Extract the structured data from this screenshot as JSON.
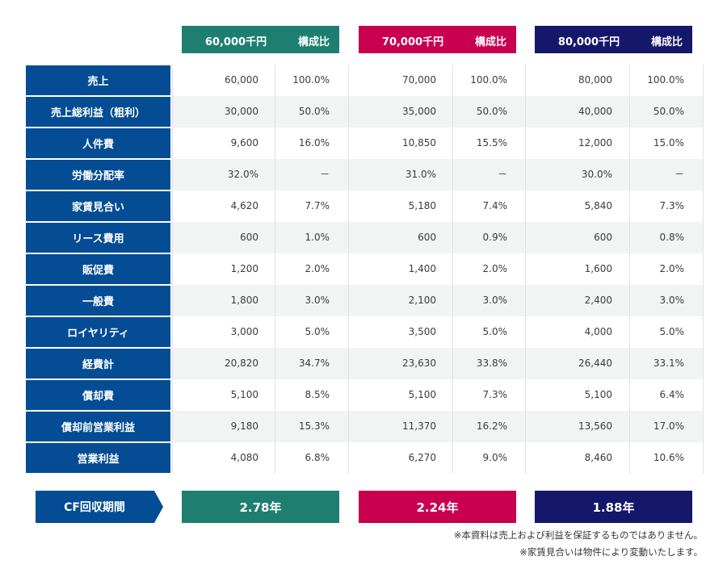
{
  "colors": {
    "label_bg": "#044d94",
    "plan_a": "#1e7f71",
    "plan_b": "#c8004f",
    "plan_c": "#15176a",
    "alt_row": "#f2f3f3"
  },
  "plans": [
    {
      "amount": "60,000千円",
      "ratio_label": "構成比",
      "cf": "2.78年"
    },
    {
      "amount": "70,000千円",
      "ratio_label": "構成比",
      "cf": "2.24年"
    },
    {
      "amount": "80,000千円",
      "ratio_label": "構成比",
      "cf": "1.88年"
    }
  ],
  "rows": [
    {
      "label": "売上",
      "values": [
        [
          "60,000",
          "100.0%"
        ],
        [
          "70,000",
          "100.0%"
        ],
        [
          "80,000",
          "100.0%"
        ]
      ]
    },
    {
      "label": "売上総利益（粗利）",
      "values": [
        [
          "30,000",
          "50.0%"
        ],
        [
          "35,000",
          "50.0%"
        ],
        [
          "40,000",
          "50.0%"
        ]
      ]
    },
    {
      "label": "人件費",
      "values": [
        [
          "9,600",
          "16.0%"
        ],
        [
          "10,850",
          "15.5%"
        ],
        [
          "12,000",
          "15.0%"
        ]
      ]
    },
    {
      "label": "労働分配率",
      "values": [
        [
          "32.0%",
          "－"
        ],
        [
          "31.0%",
          "－"
        ],
        [
          "30.0%",
          "－"
        ]
      ]
    },
    {
      "label": "家賃見合い",
      "values": [
        [
          "4,620",
          "7.7%"
        ],
        [
          "5,180",
          "7.4%"
        ],
        [
          "5,840",
          "7.3%"
        ]
      ]
    },
    {
      "label": "リース費用",
      "values": [
        [
          "600",
          "1.0%"
        ],
        [
          "600",
          "0.9%"
        ],
        [
          "600",
          "0.8%"
        ]
      ]
    },
    {
      "label": "販促費",
      "values": [
        [
          "1,200",
          "2.0%"
        ],
        [
          "1,400",
          "2.0%"
        ],
        [
          "1,600",
          "2.0%"
        ]
      ]
    },
    {
      "label": "一般費",
      "values": [
        [
          "1,800",
          "3.0%"
        ],
        [
          "2,100",
          "3.0%"
        ],
        [
          "2,400",
          "3.0%"
        ]
      ]
    },
    {
      "label": "ロイヤリティ",
      "values": [
        [
          "3,000",
          "5.0%"
        ],
        [
          "3,500",
          "5.0%"
        ],
        [
          "4,000",
          "5.0%"
        ]
      ]
    },
    {
      "label": "経費計",
      "values": [
        [
          "20,820",
          "34.7%"
        ],
        [
          "23,630",
          "33.8%"
        ],
        [
          "26,440",
          "33.1%"
        ]
      ]
    },
    {
      "label": "償却費",
      "values": [
        [
          "5,100",
          "8.5%"
        ],
        [
          "5,100",
          "7.3%"
        ],
        [
          "5,100",
          "6.4%"
        ]
      ]
    },
    {
      "label": "償却前営業利益",
      "values": [
        [
          "9,180",
          "15.3%"
        ],
        [
          "11,370",
          "16.2%"
        ],
        [
          "13,560",
          "17.0%"
        ]
      ]
    },
    {
      "label": "営業利益",
      "values": [
        [
          "4,080",
          "6.8%"
        ],
        [
          "6,270",
          "9.0%"
        ],
        [
          "8,460",
          "10.6%"
        ]
      ]
    }
  ],
  "cf_label": "CF回収期間",
  "notes": [
    "※本資料は売上および利益を保証するものではありません。",
    "※家賃見合いは物件により変動いたします。"
  ]
}
